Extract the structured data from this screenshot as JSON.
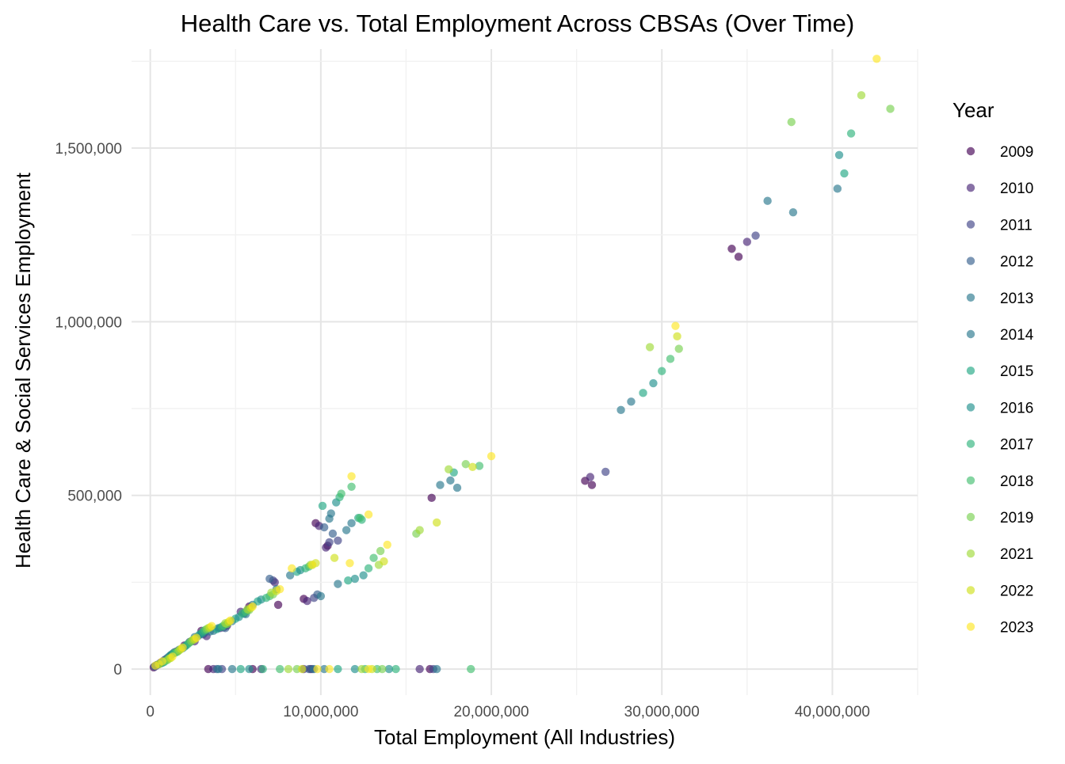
{
  "chart_data": {
    "type": "scatter",
    "title": "Health Care vs. Total Employment Across CBSAs (Over Time)",
    "xlabel": "Total Employment (All Industries)",
    "ylabel": "Health Care & Social Services Employment",
    "xlim": [
      -1100000,
      45000000
    ],
    "ylim": [
      -75000,
      1785000
    ],
    "xticks": [
      0,
      10000000,
      20000000,
      30000000,
      40000000
    ],
    "xtick_labels": [
      "0",
      "10,000,000",
      "20,000,000",
      "30,000,000",
      "40,000,000"
    ],
    "yticks": [
      0,
      500000,
      1000000,
      1500000
    ],
    "ytick_labels": [
      "0",
      "500,000",
      "1,000,000",
      "1,500,000"
    ],
    "grid": true,
    "legend_title": "Year",
    "legend_position": "right",
    "series": [
      {
        "name": "2009",
        "color": "#440154",
        "points": [
          [
            25500000,
            542000
          ],
          [
            25900000,
            530000
          ],
          [
            34100000,
            1210000
          ],
          [
            34500000,
            1187000
          ],
          [
            16500000,
            493000
          ],
          [
            9700000,
            420000
          ],
          [
            10400000,
            355000
          ],
          [
            9000000,
            202000
          ],
          [
            7500000,
            185000
          ],
          [
            5800000,
            180000
          ],
          [
            4500000,
            125000
          ],
          [
            3000000,
            110000
          ],
          [
            2000000,
            68000
          ],
          [
            1200000,
            40000
          ],
          [
            600000,
            18000
          ],
          [
            200000,
            5000
          ],
          [
            9400000,
            0
          ],
          [
            16400000,
            0
          ],
          [
            6000000,
            0
          ],
          [
            3400000,
            0
          ]
        ]
      },
      {
        "name": "2010",
        "color": "#482576",
        "points": [
          [
            25800000,
            553000
          ],
          [
            35000000,
            1230000
          ],
          [
            9900000,
            412000
          ],
          [
            10300000,
            350000
          ],
          [
            9200000,
            196000
          ],
          [
            7300000,
            250000
          ],
          [
            5300000,
            165000
          ],
          [
            4100000,
            118000
          ],
          [
            3300000,
            95000
          ],
          [
            2600000,
            80000
          ],
          [
            1600000,
            52000
          ],
          [
            900000,
            28000
          ],
          [
            400000,
            12000
          ],
          [
            15800000,
            0
          ],
          [
            9000000,
            0
          ],
          [
            6500000,
            0
          ],
          [
            3700000,
            0
          ]
        ]
      },
      {
        "name": "2011",
        "color": "#414487",
        "points": [
          [
            26700000,
            568000
          ],
          [
            35500000,
            1248000
          ],
          [
            10500000,
            365000
          ],
          [
            11000000,
            370000
          ],
          [
            9600000,
            205000
          ],
          [
            7200000,
            255000
          ],
          [
            5700000,
            170000
          ],
          [
            4300000,
            120000
          ],
          [
            3100000,
            100000
          ],
          [
            2300000,
            78000
          ],
          [
            1400000,
            48000
          ],
          [
            700000,
            20000
          ],
          [
            300000,
            8000
          ],
          [
            9500000,
            0
          ],
          [
            16600000,
            0
          ],
          [
            4200000,
            0
          ]
        ]
      },
      {
        "name": "2012",
        "color": "#35608d",
        "points": [
          [
            10700000,
            390000
          ],
          [
            10200000,
            408000
          ],
          [
            9800000,
            215000
          ],
          [
            7000000,
            260000
          ],
          [
            5500000,
            160000
          ],
          [
            4400000,
            118000
          ],
          [
            3200000,
            105000
          ],
          [
            2400000,
            80000
          ],
          [
            1500000,
            50000
          ],
          [
            800000,
            25000
          ],
          [
            250000,
            8000
          ],
          [
            9300000,
            0
          ],
          [
            3900000,
            0
          ]
        ]
      },
      {
        "name": "2013",
        "color": "#2a788e",
        "points": [
          [
            27600000,
            746000
          ],
          [
            36200000,
            1348000
          ],
          [
            37700000,
            1315000
          ],
          [
            17000000,
            530000
          ],
          [
            18000000,
            522000
          ],
          [
            10500000,
            433000
          ],
          [
            11500000,
            400000
          ],
          [
            10000000,
            210000
          ],
          [
            7400000,
            230000
          ],
          [
            5600000,
            158000
          ],
          [
            4500000,
            130000
          ],
          [
            3500000,
            108000
          ],
          [
            2600000,
            92000
          ],
          [
            1700000,
            56000
          ],
          [
            1000000,
            32000
          ],
          [
            400000,
            12000
          ],
          [
            9600000,
            0
          ],
          [
            4000000,
            0
          ]
        ]
      },
      {
        "name": "2014",
        "color": "#2a788e",
        "points": [
          [
            28200000,
            770000
          ],
          [
            40300000,
            1383000
          ],
          [
            17600000,
            543000
          ],
          [
            10600000,
            448000
          ],
          [
            11800000,
            420000
          ],
          [
            11000000,
            245000
          ],
          [
            8200000,
            270000
          ],
          [
            6000000,
            185000
          ],
          [
            4800000,
            138000
          ],
          [
            3700000,
            110000
          ],
          [
            2800000,
            95000
          ],
          [
            1900000,
            60000
          ],
          [
            1100000,
            36000
          ],
          [
            500000,
            14000
          ],
          [
            16800000,
            0
          ],
          [
            10200000,
            0
          ],
          [
            4800000,
            0
          ]
        ]
      },
      {
        "name": "2015",
        "color": "#22a884",
        "points": [
          [
            28900000,
            795000
          ],
          [
            40700000,
            1427000
          ],
          [
            17800000,
            566000
          ],
          [
            10100000,
            470000
          ],
          [
            12200000,
            435000
          ],
          [
            11600000,
            255000
          ],
          [
            8600000,
            280000
          ],
          [
            6300000,
            195000
          ],
          [
            5000000,
            145000
          ],
          [
            3900000,
            115000
          ],
          [
            2900000,
            100000
          ],
          [
            2000000,
            64000
          ],
          [
            1200000,
            40000
          ],
          [
            600000,
            16000
          ],
          [
            11000000,
            0
          ],
          [
            5300000,
            0
          ]
        ]
      },
      {
        "name": "2016",
        "color": "#21908d",
        "points": [
          [
            29500000,
            823000
          ],
          [
            40400000,
            1480000
          ],
          [
            10900000,
            480000
          ],
          [
            12000000,
            260000
          ],
          [
            12500000,
            270000
          ],
          [
            8800000,
            285000
          ],
          [
            6500000,
            200000
          ],
          [
            5200000,
            150000
          ],
          [
            4000000,
            118000
          ],
          [
            3000000,
            102000
          ],
          [
            2100000,
            68000
          ],
          [
            1300000,
            44000
          ],
          [
            700000,
            18000
          ],
          [
            12000000,
            0
          ],
          [
            14000000,
            0
          ],
          [
            5800000,
            0
          ]
        ]
      },
      {
        "name": "2017",
        "color": "#2fb47c",
        "points": [
          [
            30000000,
            858000
          ],
          [
            41100000,
            1542000
          ],
          [
            11100000,
            495000
          ],
          [
            12400000,
            430000
          ],
          [
            12800000,
            290000
          ],
          [
            9100000,
            290000
          ],
          [
            6800000,
            205000
          ],
          [
            5400000,
            160000
          ],
          [
            4200000,
            122000
          ],
          [
            3100000,
            108000
          ],
          [
            2200000,
            72000
          ],
          [
            1400000,
            46000
          ],
          [
            800000,
            20000
          ],
          [
            12600000,
            0
          ],
          [
            14400000,
            0
          ],
          [
            6600000,
            0
          ]
        ]
      },
      {
        "name": "2018",
        "color": "#44bf70",
        "points": [
          [
            30500000,
            893000
          ],
          [
            19300000,
            585000
          ],
          [
            11200000,
            505000
          ],
          [
            11800000,
            525000
          ],
          [
            12300000,
            435000
          ],
          [
            13100000,
            320000
          ],
          [
            9300000,
            295000
          ],
          [
            7000000,
            210000
          ],
          [
            5600000,
            165000
          ],
          [
            4300000,
            125000
          ],
          [
            3200000,
            112000
          ],
          [
            2300000,
            76000
          ],
          [
            1500000,
            48000
          ],
          [
            900000,
            24000
          ],
          [
            18800000,
            0
          ],
          [
            13300000,
            0
          ],
          [
            7600000,
            0
          ]
        ]
      },
      {
        "name": "2019",
        "color": "#7ad151",
        "points": [
          [
            31000000,
            922000
          ],
          [
            43400000,
            1613000
          ],
          [
            37600000,
            1575000
          ],
          [
            18500000,
            590000
          ],
          [
            15600000,
            390000
          ],
          [
            13500000,
            340000
          ],
          [
            9500000,
            300000
          ],
          [
            7200000,
            215000
          ],
          [
            5800000,
            170000
          ],
          [
            4500000,
            130000
          ],
          [
            3300000,
            115000
          ],
          [
            2400000,
            80000
          ],
          [
            1600000,
            50000
          ],
          [
            1000000,
            26000
          ],
          [
            13600000,
            0
          ],
          [
            8600000,
            0
          ]
        ]
      },
      {
        "name": "2021",
        "color": "#a0da39",
        "points": [
          [
            29300000,
            927000
          ],
          [
            41700000,
            1652000
          ],
          [
            17500000,
            575000
          ],
          [
            15800000,
            400000
          ],
          [
            13400000,
            300000
          ],
          [
            9400000,
            300000
          ],
          [
            7100000,
            220000
          ],
          [
            5700000,
            172000
          ],
          [
            4400000,
            132000
          ],
          [
            3400000,
            118000
          ],
          [
            2500000,
            84000
          ],
          [
            1700000,
            54000
          ],
          [
            1100000,
            30000
          ],
          [
            8100000,
            0
          ],
          [
            12400000,
            0
          ]
        ]
      },
      {
        "name": "2022",
        "color": "#d0e11c",
        "points": [
          [
            30900000,
            958000
          ],
          [
            18900000,
            582000
          ],
          [
            16800000,
            422000
          ],
          [
            13700000,
            310000
          ],
          [
            10800000,
            320000
          ],
          [
            9700000,
            305000
          ],
          [
            7400000,
            225000
          ],
          [
            5900000,
            176000
          ],
          [
            4600000,
            136000
          ],
          [
            3500000,
            120000
          ],
          [
            2600000,
            86000
          ],
          [
            1800000,
            58000
          ],
          [
            1200000,
            32000
          ],
          [
            500000,
            14000
          ],
          [
            13000000,
            0
          ],
          [
            8900000,
            0
          ]
        ]
      },
      {
        "name": "2023",
        "color": "#fde725",
        "points": [
          [
            42600000,
            1757000
          ],
          [
            30800000,
            988000
          ],
          [
            20000000,
            613000
          ],
          [
            11800000,
            555000
          ],
          [
            12800000,
            445000
          ],
          [
            13900000,
            358000
          ],
          [
            11700000,
            305000
          ],
          [
            9500000,
            300000
          ],
          [
            8300000,
            290000
          ],
          [
            7600000,
            230000
          ],
          [
            6000000,
            180000
          ],
          [
            4700000,
            140000
          ],
          [
            3600000,
            124000
          ],
          [
            2700000,
            90000
          ],
          [
            1900000,
            62000
          ],
          [
            1300000,
            36000
          ],
          [
            700000,
            22000
          ],
          [
            300000,
            10000
          ],
          [
            10500000,
            0
          ],
          [
            12800000,
            0
          ],
          [
            9800000,
            0
          ]
        ]
      }
    ]
  }
}
